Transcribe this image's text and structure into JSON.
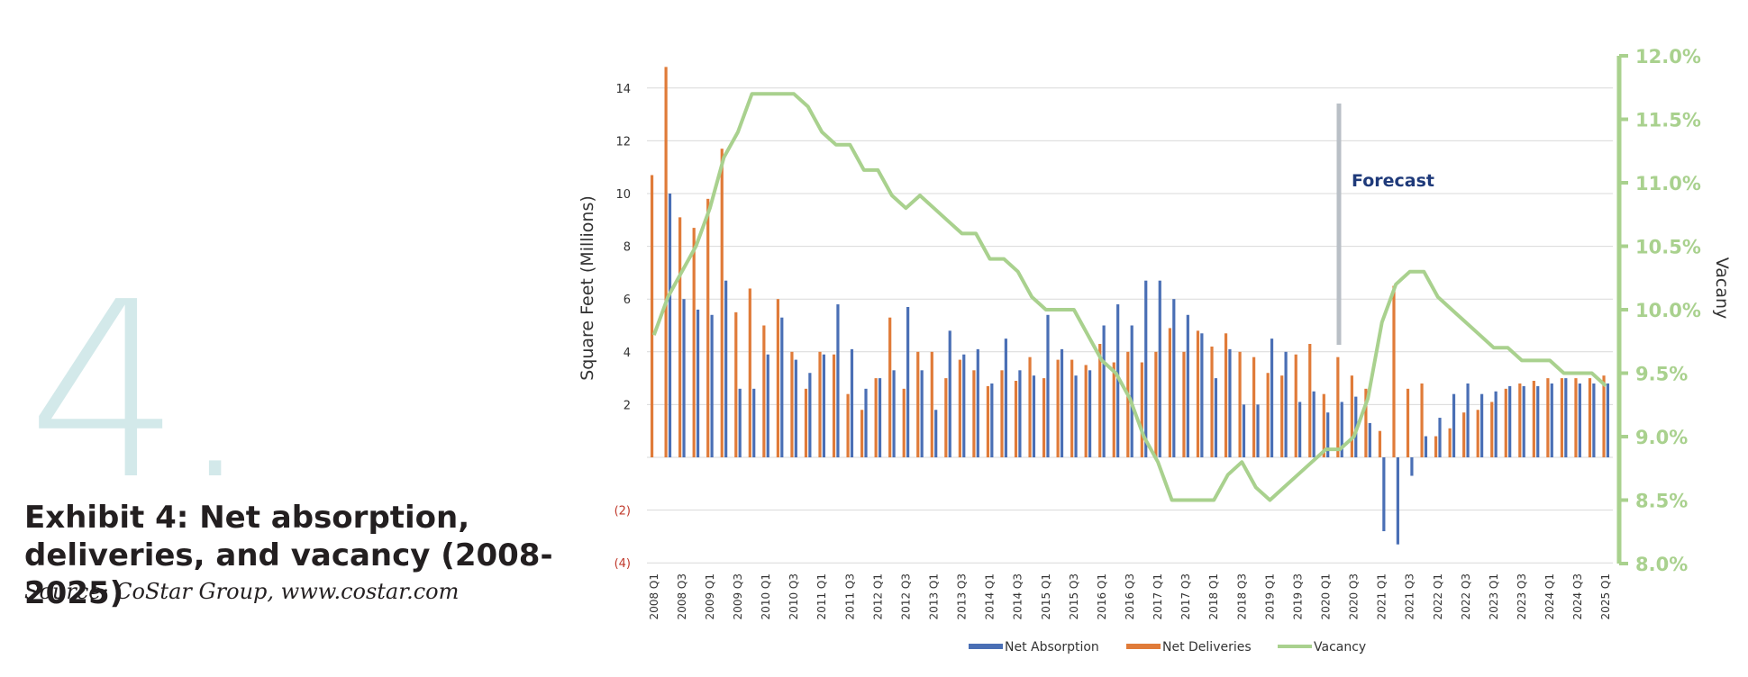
{
  "page": {
    "section_number": "4.",
    "exhibit_title": "Exhibit 4: Net absorption, deliveries, and vacancy (2008-2025)",
    "source": "Source: CoStar Group, www.costar.com"
  },
  "chart_data": {
    "type": "bar",
    "title": "",
    "ylabel": "Square Feet (Millions)",
    "y2label": "Vacany",
    "ylim": [
      -4,
      15
    ],
    "y2lim": [
      8.0,
      12.0
    ],
    "yticks": [
      {
        "value": 14,
        "label": "14"
      },
      {
        "value": 12,
        "label": "12"
      },
      {
        "value": 10,
        "label": "10"
      },
      {
        "value": 8,
        "label": "8"
      },
      {
        "value": 6,
        "label": "6"
      },
      {
        "value": 4,
        "label": "4"
      },
      {
        "value": 2,
        "label": "2"
      },
      {
        "value": -2,
        "label": "(2)"
      },
      {
        "value": -4,
        "label": "(4)"
      }
    ],
    "y2ticks": [
      {
        "value": 12.0,
        "label": "12.0%"
      },
      {
        "value": 11.5,
        "label": "11.5%"
      },
      {
        "value": 11.0,
        "label": "11.0%"
      },
      {
        "value": 10.5,
        "label": "10.5%"
      },
      {
        "value": 10.0,
        "label": "10.0%"
      },
      {
        "value": 9.5,
        "label": "9.5%"
      },
      {
        "value": 9.0,
        "label": "9.0%"
      },
      {
        "value": 8.5,
        "label": "8.5%"
      },
      {
        "value": 8.0,
        "label": "8.0%"
      }
    ],
    "x_tick_labels": [
      "2008 Q1",
      "2008 Q3",
      "2009 Q1",
      "2009 Q3",
      "2010 Q1",
      "2010 Q3",
      "2011 Q1",
      "2011 Q3",
      "2012 Q1",
      "2012 Q3",
      "2013 Q1",
      "2013 Q3",
      "2014 Q1",
      "2014 Q3",
      "2015 Q1",
      "2015 Q3",
      "2016 Q1",
      "2016 Q3",
      "2017 Q1",
      "2017 Q3",
      "2018 Q1",
      "2018 Q3",
      "2019 Q1",
      "2019 Q3",
      "2020 Q1",
      "2020 Q3",
      "2021 Q1",
      "2021 Q3",
      "2022 Q1",
      "2022 Q3",
      "2023 Q1",
      "2023 Q3",
      "2024 Q1",
      "2024 Q3",
      "2025 Q1"
    ],
    "periods": 69,
    "legend_position": "bottom",
    "annotation": {
      "text": "Forecast",
      "x": "2020 Q1"
    },
    "series": [
      {
        "name": "Net Absorption",
        "type": "bar",
        "color": "#4a6fb5",
        "values": [
          0,
          10.0,
          6.0,
          5.6,
          5.4,
          6.7,
          2.6,
          2.6,
          3.9,
          5.3,
          3.7,
          3.2,
          3.9,
          5.8,
          4.1,
          2.6,
          3.0,
          3.3,
          5.7,
          3.3,
          1.8,
          4.8,
          3.9,
          4.1,
          2.8,
          4.5,
          3.3,
          3.1,
          5.4,
          4.1,
          3.1,
          3.3,
          5.0,
          5.8,
          5.0,
          6.7,
          6.7,
          6.0,
          5.4,
          4.7,
          3.0,
          4.1,
          2.0,
          2.0,
          4.5,
          4.0,
          2.1,
          2.5,
          1.7,
          2.1,
          2.3,
          1.3,
          -2.8,
          -3.3,
          -0.7,
          0.8,
          1.5,
          2.4,
          2.8,
          2.4,
          2.5,
          2.7,
          2.7,
          2.7,
          2.8,
          3.0,
          2.8,
          2.8,
          2.8
        ]
      },
      {
        "name": "Net Deliveries",
        "type": "bar",
        "color": "#e07b39",
        "values": [
          10.7,
          14.8,
          9.1,
          8.7,
          9.8,
          11.7,
          5.5,
          6.4,
          5.0,
          6.0,
          4.0,
          2.6,
          4.0,
          3.9,
          2.4,
          1.8,
          3.0,
          5.3,
          2.6,
          4.0,
          4.0,
          3.0,
          3.7,
          3.3,
          2.7,
          3.3,
          2.9,
          3.8,
          3.0,
          3.7,
          3.7,
          3.5,
          4.3,
          3.6,
          4.0,
          3.6,
          4.0,
          4.9,
          4.0,
          4.8,
          4.2,
          4.7,
          4.0,
          3.8,
          3.2,
          3.1,
          3.9,
          4.3,
          2.4,
          3.8,
          3.1,
          2.6,
          1.0,
          6.5,
          2.6,
          2.8,
          0.8,
          1.1,
          1.7,
          1.8,
          2.1,
          2.6,
          2.8,
          2.9,
          3.0,
          3.0,
          3.0,
          3.0,
          3.1
        ]
      },
      {
        "name": "Vacancy",
        "type": "line",
        "axis": "right",
        "color": "#a9d18e",
        "values": [
          9.8,
          10.1,
          10.3,
          10.5,
          10.8,
          11.2,
          11.4,
          11.7,
          11.7,
          11.7,
          11.7,
          11.6,
          11.4,
          11.3,
          11.3,
          11.1,
          11.1,
          10.9,
          10.8,
          10.9,
          10.8,
          10.7,
          10.6,
          10.6,
          10.4,
          10.4,
          10.3,
          10.1,
          10.0,
          10.0,
          10.0,
          9.8,
          9.6,
          9.5,
          9.3,
          9.0,
          8.8,
          8.5,
          8.5,
          8.5,
          8.5,
          8.7,
          8.8,
          8.6,
          8.5,
          8.6,
          8.7,
          8.8,
          8.9,
          8.9,
          9.0,
          9.3,
          9.9,
          10.2,
          10.3,
          10.3,
          10.1,
          10.0,
          9.9,
          9.8,
          9.7,
          9.7,
          9.6,
          9.6,
          9.6,
          9.5,
          9.5,
          9.5,
          9.4
        ]
      }
    ]
  },
  "colors": {
    "big_number": "#d3e9ea",
    "negative_tick": "#c0392b",
    "forecast_text": "#1f3a7a",
    "forecast_marker": "#b9bfc6",
    "gridline": "#d9d9d9"
  }
}
